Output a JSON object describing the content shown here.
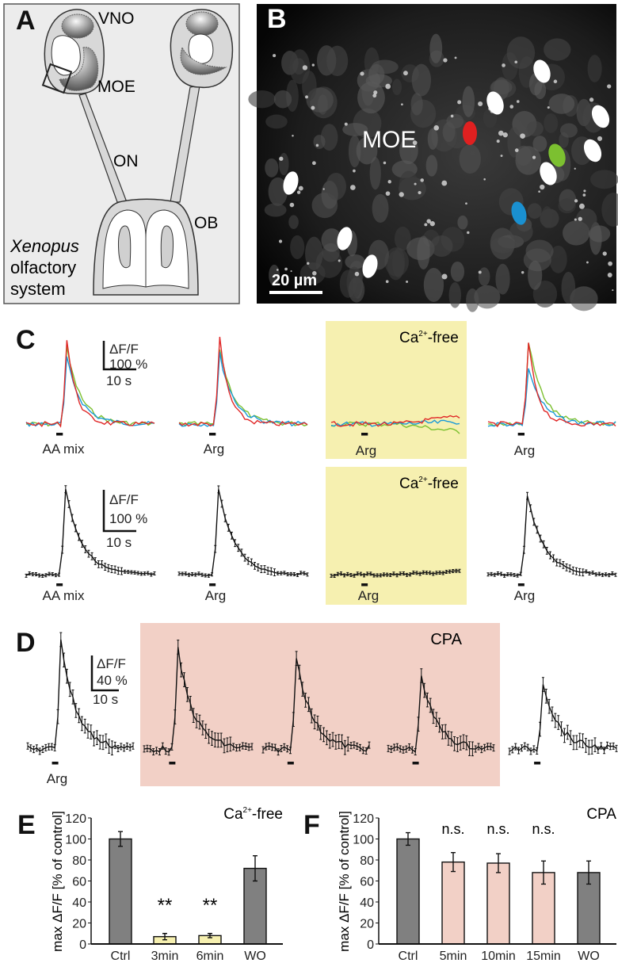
{
  "panel_letters": {
    "a": "A",
    "b": "B",
    "c": "C",
    "d": "D",
    "e": "E",
    "f": "F"
  },
  "panel_a": {
    "labels": {
      "vno": "VNO",
      "moe": "MOE",
      "on": "ON",
      "ob": "OB"
    },
    "caption": [
      "Xenopus",
      "olfactory",
      "system"
    ]
  },
  "panel_b": {
    "region_label": "MOE",
    "scale_bar": "20 µm",
    "roi_colors": {
      "red": "#e02020",
      "green": "#7cc030",
      "blue": "#1a90d0"
    }
  },
  "ca_free": {
    "base": "Ca",
    "sup": "2+",
    "rest": "-free"
  },
  "cpa_label": "CPA",
  "scale_bars": {
    "c": {
      "y": "ΔF/F",
      "amp": "100 %",
      "time": "10 s"
    },
    "d": {
      "y": "ΔF/F",
      "amp": "40 %",
      "time": "10 s"
    }
  },
  "stimulus_labels": {
    "c": [
      "AA mix",
      "Arg",
      "Arg",
      "Arg"
    ],
    "d": [
      "Arg"
    ]
  },
  "colors": {
    "red": "#e02828",
    "green": "#7cc030",
    "blue": "#1a9ad8",
    "gray_bar": "#808080",
    "yellow": "#f6f0b0",
    "pink": "#f2d0c6"
  },
  "chart_data": [
    {
      "type": "line",
      "panel": "C-individual",
      "unit": "% ΔF/F",
      "series_peaks": [
        {
          "stimulus": "AA mix",
          "red": 300,
          "green": 265,
          "blue": 230
        },
        {
          "stimulus": "Arg",
          "red": 300,
          "green": 265,
          "blue": 245
        },
        {
          "stimulus": "Arg (Ca2+-free)",
          "red": 0,
          "green": 0,
          "blue": 0
        },
        {
          "stimulus": "Arg",
          "red": 285,
          "green": 290,
          "blue": 200
        }
      ]
    },
    {
      "type": "line",
      "panel": "C-mean",
      "unit": "% ΔF/F",
      "peaks": [
        {
          "stimulus": "AA mix",
          "value": 300
        },
        {
          "stimulus": "Arg",
          "value": 300
        },
        {
          "stimulus": "Arg (Ca2+-free)",
          "value": 0
        },
        {
          "stimulus": "Arg",
          "value": 280
        }
      ]
    },
    {
      "type": "line",
      "panel": "D",
      "unit": "% ΔF/F",
      "peaks": [
        {
          "stimulus": "Arg",
          "value": 130
        },
        {
          "stimulus": "Arg (CPA)",
          "value": 116
        },
        {
          "stimulus": "Arg (CPA)",
          "value": 110
        },
        {
          "stimulus": "Arg (CPA)",
          "value": 87
        },
        {
          "stimulus": "Arg",
          "value": 79
        }
      ]
    },
    {
      "type": "bar",
      "panel": "E",
      "title": "Ca2+-free",
      "ylabel": "max ΔF/F [% of control]",
      "ylim": [
        0,
        120
      ],
      "yticks": [
        "0",
        "20",
        "40",
        "60",
        "80",
        "100",
        "120"
      ],
      "categories": [
        "Ctrl",
        "3min",
        "6min",
        "WO"
      ],
      "values": [
        100,
        7,
        8,
        72
      ],
      "errors": [
        7,
        3,
        2,
        12
      ],
      "annotations": [
        "",
        "**",
        "**",
        ""
      ],
      "bar_colors": [
        "#808080",
        "#f6f0b0",
        "#f6f0b0",
        "#808080"
      ]
    },
    {
      "type": "bar",
      "panel": "F",
      "title": "CPA",
      "ylabel": "max ΔF/F [% of control]",
      "ylim": [
        0,
        120
      ],
      "yticks": [
        "0",
        "20",
        "40",
        "60",
        "80",
        "100",
        "120"
      ],
      "categories": [
        "Ctrl",
        "5min",
        "10min",
        "15min",
        "WO"
      ],
      "values": [
        100,
        78,
        77,
        68,
        68
      ],
      "errors": [
        6,
        9,
        9,
        11,
        11
      ],
      "annotations": [
        "",
        "n.s.",
        "n.s.",
        "n.s.",
        ""
      ],
      "bar_colors": [
        "#808080",
        "#f2d0c6",
        "#f2d0c6",
        "#f2d0c6",
        "#808080"
      ]
    }
  ]
}
